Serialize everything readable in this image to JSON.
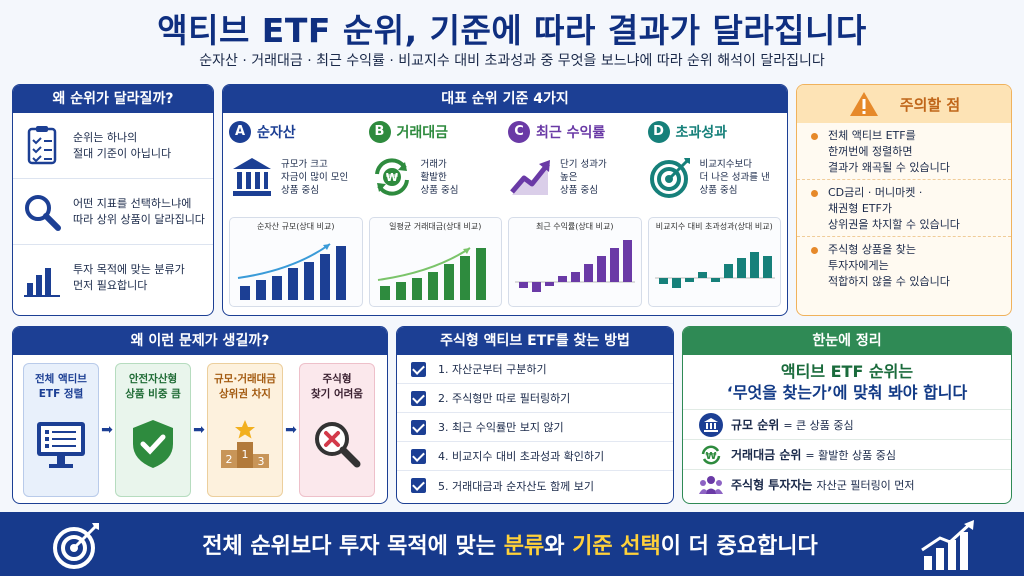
{
  "title": "액티브 ETF 순위, 기준에 따라 결과가 달라집니다",
  "subtitle": "순자산 · 거래대금 · 최근 수익률 · 비교지수 대비 초과성과 중 무엇을 보느냐에 따라 순위 해석이 달라집니다",
  "why": {
    "title": "왜 순위가 달라질까?",
    "items": [
      {
        "text": "순위는 하나의\n절대 기준이 아닙니다",
        "icon": "checklist-icon"
      },
      {
        "text": "어떤 지표를 선택하느냐에\n따라 상위 상품이 달라집니다",
        "icon": "magnifier-icon"
      },
      {
        "text": "투자 목적에 맞는 분류가\n먼저 필요합니다",
        "icon": "bar-chart-icon"
      }
    ]
  },
  "criteria": {
    "title": "대표 순위 기준 4가지",
    "items": [
      {
        "letter": "A",
        "name": "순자산",
        "desc": "규모가 크고\n자금이 많이 모인\n상품 중심",
        "chart_title": "순자산 규모(상대 비교)",
        "color": "#1c3f94",
        "icon": "bank-icon"
      },
      {
        "letter": "B",
        "name": "거래대금",
        "desc": "거래가\n활발한\n상품 중심",
        "chart_title": "일평균 거래대금(상대 비교)",
        "color": "#2e8b3e",
        "icon": "won-cycle-icon"
      },
      {
        "letter": "C",
        "name": "최근 수익률",
        "desc": "단기 성과가\n높은\n상품 중심",
        "chart_title": "최근 수익률(상대 비교)",
        "color": "#6a3aa6",
        "icon": "trend-up-icon"
      },
      {
        "letter": "D",
        "name": "초과성과",
        "desc": "비교지수보다\n더 나은 성과를 낸\n상품 중심",
        "chart_title": "비교지수 대비 초과성과(상대 비교)",
        "color": "#16807a",
        "icon": "target-icon"
      }
    ]
  },
  "caution": {
    "title": "주의할 점",
    "items": [
      "전체 액티브 ETF를\n한꺼번에 정렬하면\n결과가 왜곡될 수 있습니다",
      "CD금리 · 머니마켓 ·\n채권형 ETF가\n상위권을 차지할 수 있습니다",
      "주식형 상품을 찾는\n투자자에게는\n적합하지 않을 수 있습니다"
    ]
  },
  "cause": {
    "title": "왜 이런 문제가 생길까?",
    "items": [
      {
        "label": "전체 액티브\nETF 정렬",
        "icon": "monitor-list-icon"
      },
      {
        "label": "안전자산형\n상품 비중 큼",
        "icon": "shield-check-icon"
      },
      {
        "label": "규모·거래대금\n상위권 차지",
        "icon": "podium-icon"
      },
      {
        "label": "주식형\n찾기 어려움",
        "icon": "search-x-icon"
      }
    ]
  },
  "method": {
    "title": "주식형 액티브 ETF를 찾는 방법",
    "items": [
      "1. 자산군부터 구분하기",
      "2. 주식형만 따로 필터링하기",
      "3. 최근 수익률만 보지 않기",
      "4. 비교지수 대비 초과성과 확인하기",
      "5. 거래대금과 순자산도 함께 보기"
    ]
  },
  "summary": {
    "title": "한눈에 정리",
    "line1": "액티브 ETF 순위는",
    "line2": "‘무엇을 찾는가’에 맞춰 봐야 합니다",
    "items": [
      {
        "key": "규모 순위",
        "value": "= 큰 상품 중심",
        "icon": "bank-icon"
      },
      {
        "key": "거래대금 순위",
        "value": "= 활발한 상품 중심",
        "icon": "won-cycle-icon"
      },
      {
        "key": "주식형 투자자는",
        "value": "자산군 필터링이 먼저",
        "icon": "people-icon"
      }
    ]
  },
  "banner": {
    "pre": "전체 순위보다 투자 목적에 맞는 ",
    "hl1": "분류",
    "mid": "와 ",
    "hl2": "기준 선택",
    "post": "이 더 중요합니다"
  },
  "colors": {
    "navy": "#1c3f94",
    "green": "#2f8a55",
    "orange": "#e6892a",
    "yellow": "#ffd13a"
  }
}
